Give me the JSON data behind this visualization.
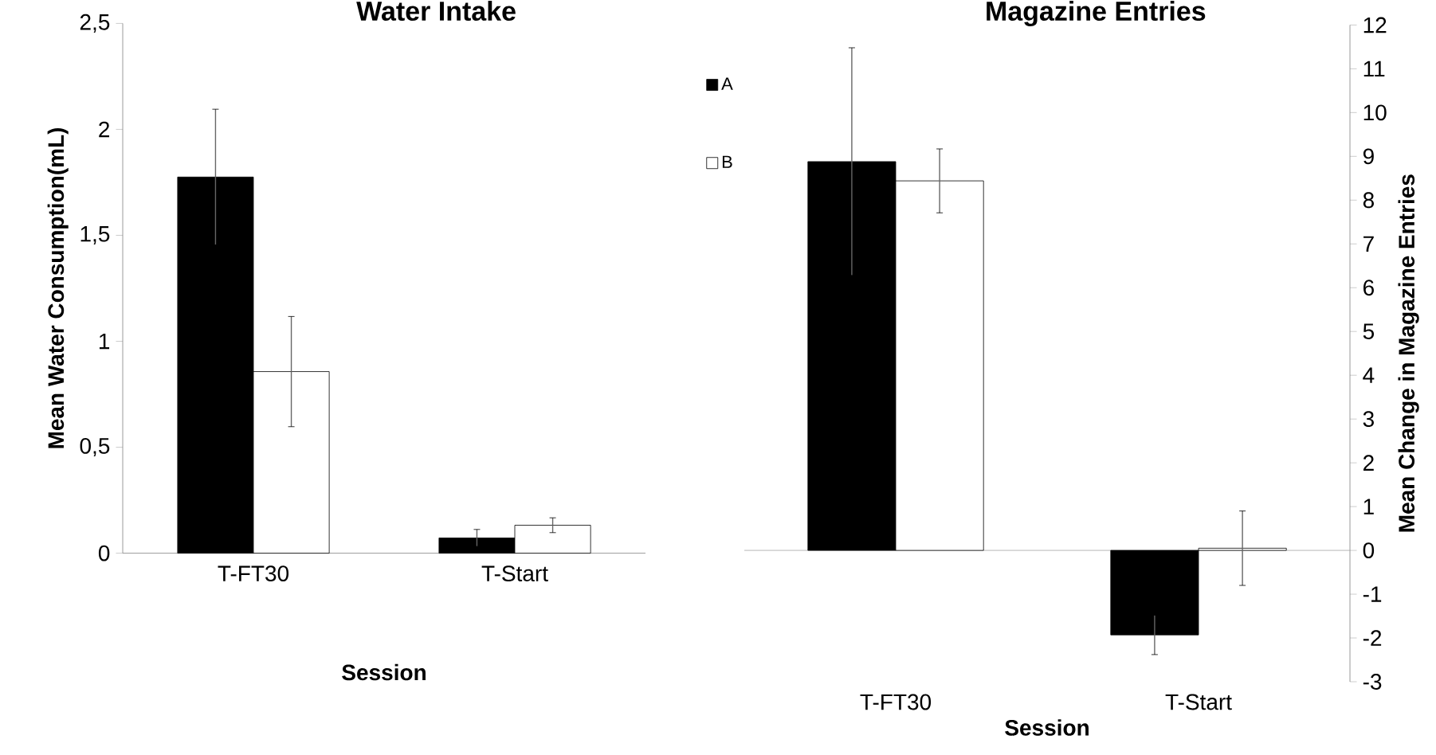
{
  "chart_data": [
    {
      "type": "bar",
      "title": "Water Intake",
      "xlabel": "Session",
      "ylabel": "Mean Water Consumption(mL)",
      "categories": [
        "T-FT30",
        "T-Start"
      ],
      "series": [
        {
          "color": "#000000",
          "values": [
            1.775,
            0.072
          ],
          "errors": [
            0.32,
            0.04
          ]
        },
        {
          "color": "#ffffff",
          "values": [
            0.857,
            0.132
          ],
          "errors": [
            0.26,
            0.035
          ]
        }
      ],
      "ylim": [
        0,
        2.5
      ],
      "yticks": [
        0,
        {
          "value": 0.5,
          "label": "0,5"
        },
        1,
        {
          "value": 1.5,
          "label": "1,5"
        },
        2,
        {
          "value": 2.5,
          "label": "2,5"
        }
      ]
    },
    {
      "type": "bar",
      "title": "Magazine Entries",
      "xlabel": "Session",
      "ylabel": "Mean Change in Magazine Entries",
      "categories": [
        "T-FT30",
        "T-Start"
      ],
      "series": [
        {
          "name": "A",
          "color": "#000000",
          "values": [
            8.88,
            -1.93
          ],
          "errors": [
            2.6,
            0.45
          ]
        },
        {
          "name": "B",
          "color": "#ffffff",
          "values": [
            8.44,
            0.05
          ],
          "errors": [
            0.73,
            0.85
          ]
        }
      ],
      "ylim": [
        -3,
        12
      ],
      "yticks": [
        -3,
        -2,
        -1,
        0,
        1,
        2,
        3,
        4,
        5,
        6,
        7,
        8,
        9,
        10,
        11,
        12
      ],
      "legend": "top left"
    }
  ]
}
